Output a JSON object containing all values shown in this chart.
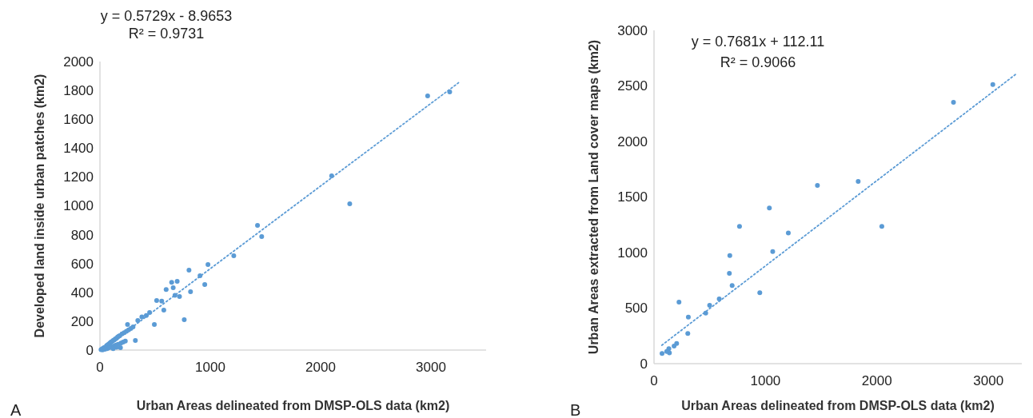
{
  "chart_data": [
    {
      "type": "scatter",
      "xlabel": "Urban Areas delineated from DMSP-OLS data (km2)",
      "ylabel": "Developed land inside urban patches (km2)",
      "xlim": [
        0,
        3500
      ],
      "xticks": [
        0,
        1000,
        2000,
        3000
      ],
      "ylim": [
        0,
        2000
      ],
      "yticks": [
        0,
        200,
        400,
        600,
        800,
        1000,
        1200,
        1400,
        1600,
        1800,
        2000
      ],
      "marker": "circle",
      "annotations": [
        "y = 0.5729x - 8.9653",
        "R² = 0.9731",
        "A"
      ],
      "series": [
        {
          "color": "#5b9bd5",
          "x": [
            2970,
            3170,
            2100,
            2264,
            1428,
            1466,
            1213,
            979,
            807,
            950,
            764,
            907,
            700,
            664,
            721,
            821,
            514,
            579,
            450,
            493,
            343,
            250,
            321,
            186,
            10,
            20,
            30,
            40,
            60,
            70,
            80,
            90,
            100,
            110,
            120,
            130,
            140,
            150,
            160,
            170,
            180,
            200,
            220,
            240,
            260,
            280,
            300,
            25,
            45,
            65,
            85,
            105,
            125,
            145,
            165,
            190,
            210,
            230,
            150,
            120,
            600,
            650,
            680,
            560,
            420,
            380
          ],
          "values": [
            1762,
            1790,
            1208,
            1014,
            864,
            787,
            654,
            593,
            554,
            454,
            210,
            515,
            476,
            432,
            371,
            404,
            343,
            277,
            260,
            177,
            205,
            177,
            66,
            17,
            3,
            8,
            12,
            18,
            30,
            36,
            42,
            48,
            55,
            60,
            66,
            70,
            78,
            82,
            90,
            95,
            100,
            112,
            120,
            130,
            140,
            150,
            160,
            2,
            6,
            10,
            16,
            22,
            28,
            34,
            40,
            48,
            55,
            62,
            20,
            10,
            420,
            470,
            380,
            340,
            240,
            230
          ]
        },
        {
          "type": "line",
          "line_style": "dotted",
          "marker": "none",
          "color": "#5b9bd5",
          "x": [
            50,
            3250
          ],
          "values": [
            20,
            1853
          ]
        }
      ]
    },
    {
      "type": "scatter",
      "xlabel": "Urban Areas delineated from DMSP-OLS data (km2)",
      "ylabel": "Urban Areas extracted from Land cover maps (km2)",
      "xlim": [
        0,
        3300
      ],
      "xticks": [
        0,
        1000,
        2000,
        3000
      ],
      "ylim": [
        0,
        3000
      ],
      "yticks": [
        0,
        500,
        1000,
        1500,
        2000,
        2500,
        3000
      ],
      "marker": "circle",
      "annotations": [
        "y = 0.7681x + 112.11",
        "R² = 0.9066",
        "B"
      ],
      "series": [
        {
          "color": "#5b9bd5",
          "x": [
            72,
            133,
            138,
            114,
            180,
            203,
            224,
            303,
            308,
            464,
            499,
            585,
            676,
            680,
            701,
            767,
            949,
            1035,
            1065,
            1205,
            1466,
            1832,
            2044,
            2687,
            3040
          ],
          "values": [
            91,
            134,
            98,
            110,
            158,
            182,
            554,
            271,
            419,
            455,
            525,
            583,
            813,
            973,
            703,
            1235,
            638,
            1401,
            1009,
            1177,
            1604,
            1640,
            1235,
            2353,
            2513
          ]
        },
        {
          "type": "line",
          "line_style": "dotted",
          "marker": "none",
          "color": "#5b9bd5",
          "x": [
            70,
            3250
          ],
          "values": [
            166,
            2608
          ]
        }
      ]
    }
  ]
}
